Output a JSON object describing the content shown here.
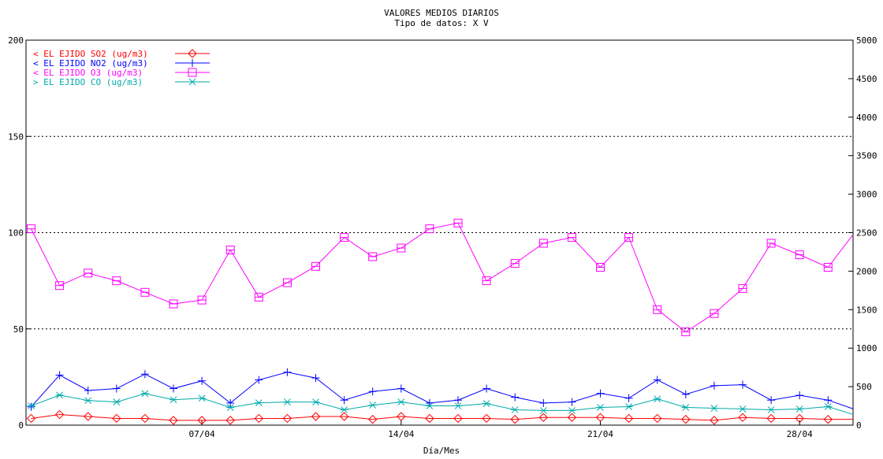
{
  "chart_data": {
    "type": "line",
    "title": "VALORES MEDIOS DIARIOS",
    "subtitle": "Tipo de datos:  X V",
    "xlabel": "Día/Mes",
    "x_ticks": [
      "07/04",
      "14/04",
      "21/04",
      "28/04"
    ],
    "y_left": {
      "lim": [
        0,
        200
      ],
      "ticks": [
        "0",
        "50",
        "100",
        "150",
        "200"
      ]
    },
    "y_right": {
      "lim": [
        0,
        5000
      ],
      "ticks": [
        "0",
        "500",
        "1000",
        "1500",
        "2000",
        "2500",
        "3000",
        "3500",
        "4000",
        "4500",
        "5000"
      ]
    },
    "grid_lines": [
      50,
      100,
      150
    ],
    "x_days": [
      1,
      2,
      3,
      4,
      5,
      6,
      7,
      8,
      9,
      10,
      11,
      12,
      13,
      14,
      15,
      16,
      17,
      18,
      19,
      20,
      21,
      22,
      23,
      24,
      25,
      26,
      27,
      28,
      29,
      30
    ],
    "series": [
      {
        "name": "EL EJIDO SO2  (ug/m3)",
        "legend_prefix": "<",
        "color": "#ff0000",
        "marker": "diamond",
        "axis": "left",
        "values": [
          3.5,
          5.5,
          4.5,
          3.5,
          3.5,
          2.5,
          2.5,
          2.5,
          3.5,
          3.5,
          4.5,
          4.5,
          3.0,
          4.5,
          3.5,
          3.5,
          3.5,
          3.0,
          4.0,
          4.0,
          4.0,
          3.5,
          3.5,
          3.0,
          2.5,
          4.0,
          3.5,
          3.5,
          3.0,
          3.0
        ]
      },
      {
        "name": "EL EJIDO NO2  (ug/m3)",
        "legend_prefix": "<",
        "color": "#0000ff",
        "marker": "plus",
        "axis": "left",
        "values": [
          9.5,
          26.0,
          18.0,
          19.0,
          26.5,
          19.0,
          23.0,
          11.5,
          23.5,
          27.5,
          24.5,
          13.0,
          17.5,
          19.0,
          11.5,
          13.0,
          19.0,
          14.5,
          11.5,
          12.0,
          16.5,
          14.0,
          23.5,
          16.0,
          20.5,
          21.0,
          13.0,
          15.5,
          13.0,
          8.5
        ]
      },
      {
        "name": "EL EJIDO O3  (ug/m3)",
        "legend_prefix": "<",
        "color": "#ff00ff",
        "marker": "square",
        "axis": "left",
        "values": [
          102,
          72.5,
          79,
          75,
          69,
          63,
          65,
          91,
          66.5,
          74,
          82.5,
          97.5,
          87.5,
          92,
          102,
          105,
          75,
          84,
          94.5,
          97.5,
          82,
          97.5,
          60,
          48.5,
          58,
          71,
          94.5,
          88.5,
          82,
          99
        ]
      },
      {
        "name": "EL EJIDO CO  (ug/m3)",
        "legend_prefix": ">",
        "color": "#00aaaa",
        "marker": "star",
        "axis": "right",
        "values": [
          250,
          390,
          320,
          300,
          410,
          330,
          350,
          230,
          290,
          300,
          300,
          200,
          260,
          300,
          250,
          250,
          280,
          200,
          190,
          190,
          230,
          240,
          340,
          230,
          220,
          210,
          200,
          210,
          240,
          140
        ]
      }
    ]
  }
}
